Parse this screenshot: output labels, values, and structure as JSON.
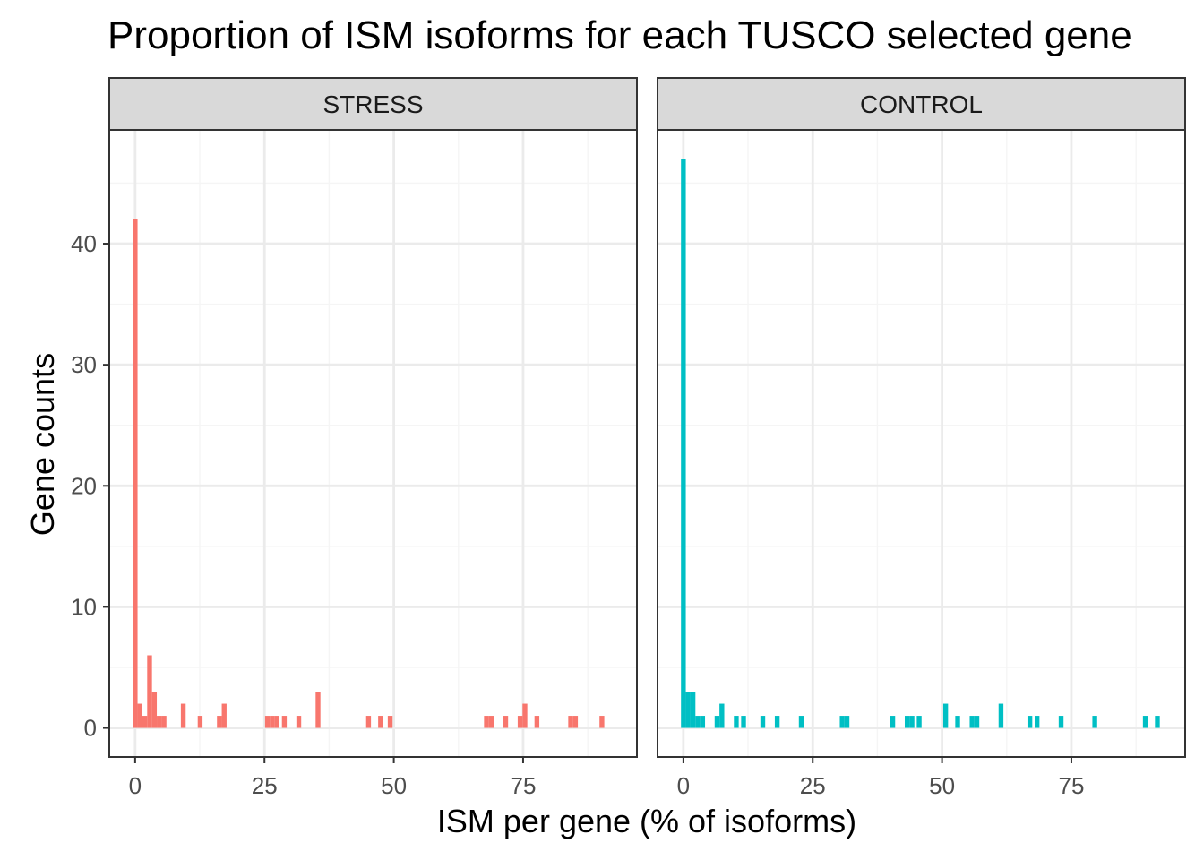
{
  "chart_data": {
    "type": "bar",
    "title": "Proportion of ISM isoforms for each TUSCO selected gene",
    "xlabel": "ISM per gene (% of isoforms)",
    "ylabel": "Gene counts",
    "xlim": [
      -5,
      97
    ],
    "ylim": [
      -2.4,
      49.4
    ],
    "x_ticks": [
      0,
      25,
      50,
      75
    ],
    "y_ticks": [
      0,
      10,
      20,
      30,
      40
    ],
    "bin_width": 0.93,
    "grid": true,
    "legend": "none",
    "facets": [
      {
        "name": "STRESS",
        "color": "#F8766D",
        "bins": [
          {
            "x": 0.0,
            "count": 42
          },
          {
            "x": 0.93,
            "count": 2
          },
          {
            "x": 1.86,
            "count": 1
          },
          {
            "x": 2.79,
            "count": 6
          },
          {
            "x": 3.72,
            "count": 3
          },
          {
            "x": 4.65,
            "count": 1
          },
          {
            "x": 5.58,
            "count": 1
          },
          {
            "x": 9.3,
            "count": 2
          },
          {
            "x": 12.56,
            "count": 1
          },
          {
            "x": 16.28,
            "count": 1
          },
          {
            "x": 17.21,
            "count": 2
          },
          {
            "x": 25.58,
            "count": 1
          },
          {
            "x": 26.51,
            "count": 1
          },
          {
            "x": 27.44,
            "count": 1
          },
          {
            "x": 28.84,
            "count": 1
          },
          {
            "x": 31.63,
            "count": 1
          },
          {
            "x": 35.35,
            "count": 3
          },
          {
            "x": 45.12,
            "count": 1
          },
          {
            "x": 47.44,
            "count": 1
          },
          {
            "x": 49.3,
            "count": 1
          },
          {
            "x": 67.91,
            "count": 1
          },
          {
            "x": 68.84,
            "count": 1
          },
          {
            "x": 71.63,
            "count": 1
          },
          {
            "x": 74.42,
            "count": 1
          },
          {
            "x": 75.35,
            "count": 2
          },
          {
            "x": 77.67,
            "count": 1
          },
          {
            "x": 84.19,
            "count": 1
          },
          {
            "x": 85.12,
            "count": 1
          },
          {
            "x": 90.23,
            "count": 1
          }
        ]
      },
      {
        "name": "CONTROL",
        "color": "#00BFC4",
        "bins": [
          {
            "x": 0.0,
            "count": 47
          },
          {
            "x": 0.93,
            "count": 3
          },
          {
            "x": 1.86,
            "count": 3
          },
          {
            "x": 2.79,
            "count": 1
          },
          {
            "x": 3.72,
            "count": 1
          },
          {
            "x": 6.51,
            "count": 1
          },
          {
            "x": 7.44,
            "count": 2
          },
          {
            "x": 10.23,
            "count": 1
          },
          {
            "x": 11.63,
            "count": 1
          },
          {
            "x": 15.35,
            "count": 1
          },
          {
            "x": 18.14,
            "count": 1
          },
          {
            "x": 22.79,
            "count": 1
          },
          {
            "x": 30.7,
            "count": 1
          },
          {
            "x": 31.63,
            "count": 1
          },
          {
            "x": 40.47,
            "count": 1
          },
          {
            "x": 43.26,
            "count": 1
          },
          {
            "x": 44.19,
            "count": 1
          },
          {
            "x": 45.58,
            "count": 1
          },
          {
            "x": 50.7,
            "count": 2
          },
          {
            "x": 53.02,
            "count": 1
          },
          {
            "x": 55.81,
            "count": 1
          },
          {
            "x": 56.74,
            "count": 1
          },
          {
            "x": 61.4,
            "count": 2
          },
          {
            "x": 66.98,
            "count": 1
          },
          {
            "x": 68.37,
            "count": 1
          },
          {
            "x": 73.02,
            "count": 1
          },
          {
            "x": 79.53,
            "count": 1
          },
          {
            "x": 89.3,
            "count": 1
          },
          {
            "x": 91.63,
            "count": 1
          }
        ]
      }
    ]
  },
  "colors": {
    "panel_background": "#ffffff",
    "panel_border": "#333333",
    "grid_major": "#ebebeb",
    "grid_minor": "#f5f5f5",
    "strip_fill": "#d9d9d9",
    "strip_text": "#1a1a1a",
    "tick_text": "#4d4d4d"
  }
}
